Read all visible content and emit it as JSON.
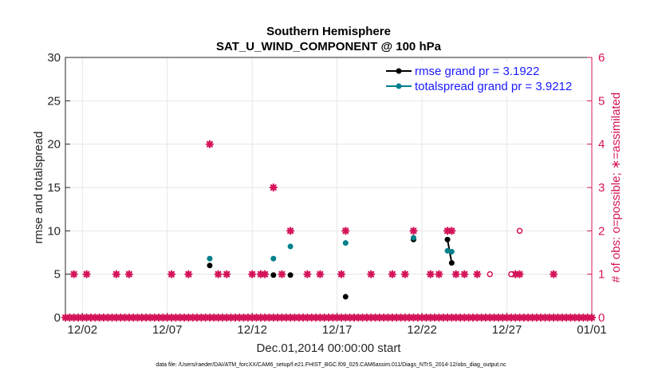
{
  "colors": {
    "rmse": "#000000",
    "spread": "#00808c",
    "obs": "#d4145a",
    "legend_text": "#1a1aff",
    "axis": "#262626",
    "grid": "#e6e6e6"
  },
  "chart_data": {
    "type": "scatter",
    "title": "Southern Hemisphere",
    "subtitle": "SAT_U_WIND_COMPONENT @ 100 hPa",
    "xlabel": "Dec.01,2014 00:00:00 start",
    "ylabel_left": "rmse and totalspread",
    "ylabel_right": "# of obs: o=possible; ∗=assimilated",
    "xlim": [
      0,
      31
    ],
    "ylim_left": [
      0,
      30
    ],
    "ylim_right": [
      0,
      6
    ],
    "x_ticks": [
      {
        "x": 1,
        "label": "12/02"
      },
      {
        "x": 6,
        "label": "12/07"
      },
      {
        "x": 11,
        "label": "12/12"
      },
      {
        "x": 16,
        "label": "12/17"
      },
      {
        "x": 21,
        "label": "12/22"
      },
      {
        "x": 26,
        "label": "12/27"
      },
      {
        "x": 31,
        "label": "01/01"
      }
    ],
    "y_ticks_left": [
      0,
      5,
      10,
      15,
      20,
      25,
      30
    ],
    "y_ticks_right": [
      0,
      1,
      2,
      3,
      4,
      5,
      6
    ],
    "legend": [
      {
        "series": "rmse",
        "label": "rmse grand pr = 3.1922"
      },
      {
        "series": "totalspread",
        "label": "totalspread grand pr = 3.9212"
      }
    ],
    "legend_position": "top-right",
    "series": [
      {
        "name": "rmse",
        "points": [
          [
            8.5,
            6.0
          ],
          [
            12.25,
            4.9
          ],
          [
            13.25,
            4.9
          ],
          [
            16.5,
            2.4
          ],
          [
            20.5,
            9.0
          ],
          [
            22.5,
            9.0
          ],
          [
            22.75,
            6.3
          ]
        ]
      },
      {
        "name": "totalspread",
        "points": [
          [
            8.5,
            6.8
          ],
          [
            12.25,
            6.8
          ],
          [
            13.25,
            8.2
          ],
          [
            16.5,
            8.6
          ],
          [
            20.5,
            9.2
          ],
          [
            22.5,
            7.7
          ],
          [
            22.75,
            7.6
          ]
        ]
      }
    ],
    "connected_segments": [
      [
        [
          22.5,
          9.0
        ],
        [
          22.75,
          6.3
        ]
      ],
      [
        [
          22.5,
          7.7
        ],
        [
          22.75,
          7.6
        ]
      ]
    ],
    "obs_assimilated": [
      [
        0.5,
        1
      ],
      [
        1.25,
        1
      ],
      [
        3.0,
        1
      ],
      [
        3.75,
        1
      ],
      [
        6.25,
        1
      ],
      [
        7.25,
        1
      ],
      [
        8.5,
        4
      ],
      [
        9.0,
        1
      ],
      [
        9.5,
        1
      ],
      [
        11.0,
        1
      ],
      [
        11.5,
        1
      ],
      [
        11.75,
        1
      ],
      [
        12.25,
        3
      ],
      [
        12.75,
        1
      ],
      [
        13.25,
        2
      ],
      [
        14.25,
        1
      ],
      [
        15.0,
        1
      ],
      [
        16.25,
        1
      ],
      [
        16.5,
        2
      ],
      [
        18.0,
        1
      ],
      [
        19.25,
        1
      ],
      [
        20.0,
        1
      ],
      [
        20.5,
        2
      ],
      [
        21.5,
        1
      ],
      [
        22.0,
        1
      ],
      [
        22.5,
        2
      ],
      [
        22.75,
        2
      ],
      [
        23.0,
        1
      ],
      [
        23.5,
        1
      ],
      [
        24.25,
        1
      ],
      [
        26.5,
        1
      ],
      [
        26.75,
        1
      ],
      [
        28.75,
        1
      ]
    ],
    "obs_possible": [
      [
        25.0,
        1
      ],
      [
        26.25,
        1
      ],
      [
        26.75,
        2
      ]
    ],
    "obs_zero_x_start": 0,
    "obs_zero_x_end": 31,
    "obs_zero_step": 0.25
  },
  "footer": {
    "data_file": "data file: /Users/raeder/DAI/ATM_forcXX/CAM6_setup/f.e21.FHIST_BGC.f09_025.CAM6assim.011/Diags_NTrS_2014-12/obs_diag_output.nc"
  }
}
